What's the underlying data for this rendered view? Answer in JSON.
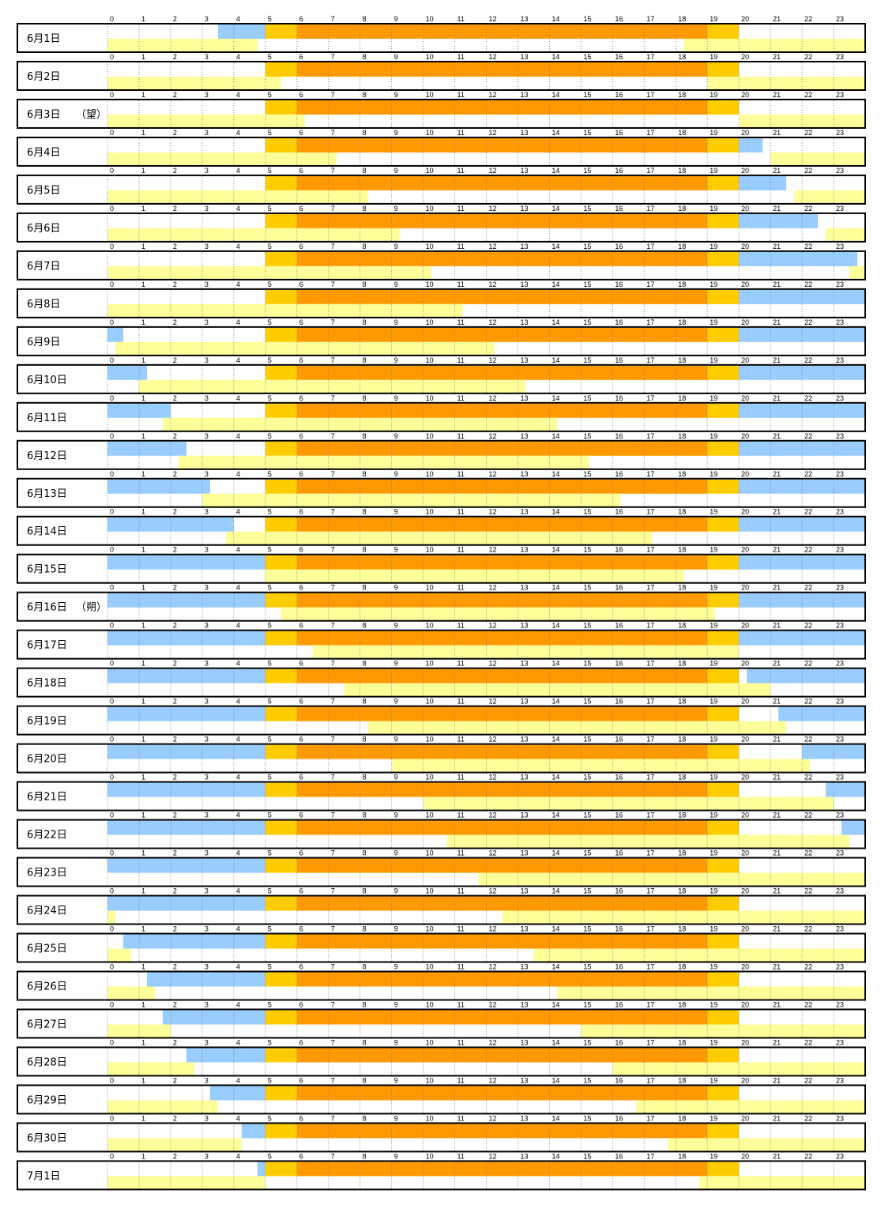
{
  "chart_data": {
    "type": "bar",
    "hours": [
      "0",
      "1",
      "2",
      "3",
      "4",
      "5",
      "6",
      "7",
      "8",
      "9",
      "10",
      "11",
      "12",
      "13",
      "14",
      "15",
      "16",
      "17",
      "18",
      "19",
      "20",
      "21",
      "22",
      "23"
    ],
    "colors": {
      "night_blue": "#99ccff",
      "twilight_gold": "#ffcc00",
      "daylight_orange": "#ff9900",
      "band_yellow": "#ffff99",
      "border": "#000000",
      "grid_dotted": "#888888"
    },
    "days": [
      {
        "label": "6月1日",
        "note": "",
        "night_start": 3.5,
        "evening_end": 20.0,
        "night_resume": null,
        "band": [
          [
            0,
            4.75
          ],
          [
            18.25,
            24
          ]
        ]
      },
      {
        "label": "6月2日",
        "note": "",
        "night_start": null,
        "evening_end": 20.0,
        "night_resume": null,
        "band": [
          [
            0,
            5.5
          ],
          [
            19.0,
            24
          ]
        ]
      },
      {
        "label": "6月3日",
        "note": "（望）",
        "night_start": null,
        "evening_end": 20.0,
        "night_resume": null,
        "band": [
          [
            0,
            6.25
          ],
          [
            20.0,
            24
          ]
        ]
      },
      {
        "label": "6月4日",
        "note": "",
        "night_start": null,
        "evening_end": 20.0,
        "night_resume": 20.75,
        "band": [
          [
            0,
            7.25
          ],
          [
            21.0,
            24
          ]
        ]
      },
      {
        "label": "6月5日",
        "note": "",
        "night_start": null,
        "evening_end": 20.0,
        "night_resume": 21.5,
        "band": [
          [
            0,
            8.25
          ],
          [
            21.75,
            24
          ]
        ]
      },
      {
        "label": "6月6日",
        "note": "",
        "night_start": null,
        "evening_end": 20.0,
        "night_resume": 22.5,
        "band": [
          [
            0,
            9.25
          ],
          [
            22.75,
            24
          ]
        ]
      },
      {
        "label": "6月7日",
        "note": "",
        "night_start": null,
        "evening_end": 20.0,
        "night_resume": 23.75,
        "band": [
          [
            0,
            10.25
          ],
          [
            23.5,
            24
          ]
        ]
      },
      {
        "label": "6月8日",
        "note": "",
        "night_start": null,
        "evening_end": 20.0,
        "night_resume": 24.0,
        "band": [
          [
            0,
            11.25
          ]
        ]
      },
      {
        "label": "6月9日",
        "note": "",
        "night_start": 0.5,
        "evening_end": 20.0,
        "night_resume": 24.0,
        "band": [
          [
            0.25,
            12.25
          ]
        ]
      },
      {
        "label": "6月10日",
        "note": "",
        "night_start": 1.25,
        "evening_end": 20.0,
        "night_resume": 24.0,
        "band": [
          [
            1.0,
            13.25
          ]
        ]
      },
      {
        "label": "6月11日",
        "note": "",
        "night_start": 2.0,
        "evening_end": 20.0,
        "night_resume": 24.0,
        "band": [
          [
            1.75,
            14.25
          ]
        ]
      },
      {
        "label": "6月12日",
        "note": "",
        "night_start": 2.5,
        "evening_end": 20.0,
        "night_resume": 24.0,
        "band": [
          [
            2.25,
            15.25
          ]
        ]
      },
      {
        "label": "6月13日",
        "note": "",
        "night_start": 3.25,
        "evening_end": 20.0,
        "night_resume": 24.0,
        "band": [
          [
            3.0,
            16.25
          ]
        ]
      },
      {
        "label": "6月14日",
        "note": "",
        "night_start": 4.0,
        "evening_end": 20.0,
        "night_resume": 24.0,
        "band": [
          [
            3.75,
            17.25
          ]
        ]
      },
      {
        "label": "6月15日",
        "note": "",
        "night_start": 5.0,
        "evening_end": 20.0,
        "night_resume": 24.0,
        "band": [
          [
            5.0,
            18.25
          ]
        ]
      },
      {
        "label": "6月16日",
        "note": "（朔）",
        "night_start": 5.0,
        "evening_end": 20.0,
        "night_resume": 24.0,
        "band": [
          [
            5.5,
            19.25
          ]
        ]
      },
      {
        "label": "6月17日",
        "note": "",
        "night_start": 5.0,
        "evening_end": 20.0,
        "night_resume": 24.0,
        "band": [
          [
            6.5,
            20.0
          ]
        ]
      },
      {
        "label": "6月18日",
        "note": "",
        "night_start": 5.0,
        "evening_end": 20.0,
        "night_resume": 24.0,
        "band": [
          [
            7.5,
            21.0
          ]
        ]
      },
      {
        "label": "6月19日",
        "note": "",
        "night_start": 5.0,
        "evening_end": 20.0,
        "night_resume": 24.0,
        "band": [
          [
            8.25,
            21.5
          ]
        ]
      },
      {
        "label": "6月20日",
        "note": "",
        "night_start": 5.0,
        "evening_end": 20.0,
        "night_resume": 24.0,
        "band": [
          [
            9.0,
            22.25
          ]
        ]
      },
      {
        "label": "6月21日",
        "note": "",
        "night_start": 5.0,
        "evening_end": 20.0,
        "night_resume": 24.0,
        "band": [
          [
            10.0,
            23.0
          ]
        ]
      },
      {
        "label": "6月22日",
        "note": "",
        "night_start": 5.0,
        "evening_end": 20.0,
        "night_resume": 24.0,
        "band": [
          [
            10.75,
            23.5
          ]
        ]
      },
      {
        "label": "6月23日",
        "note": "",
        "night_start": 5.0,
        "evening_end": 20.0,
        "night_resume": null,
        "band": [
          [
            11.75,
            24
          ]
        ]
      },
      {
        "label": "6月24日",
        "note": "",
        "night_start": 5.0,
        "evening_end": 20.0,
        "night_resume": null,
        "band": [
          [
            0,
            0.25
          ],
          [
            12.5,
            24
          ]
        ]
      },
      {
        "label": "6月25日",
        "note": "",
        "night_start": 5.0,
        "evening_end": 20.0,
        "night_resume": null,
        "band": [
          [
            0,
            0.75
          ],
          [
            13.5,
            24
          ]
        ]
      },
      {
        "label": "6月26日",
        "note": "",
        "night_start": 5.0,
        "evening_end": 20.0,
        "night_resume": null,
        "band": [
          [
            0,
            1.5
          ],
          [
            14.25,
            24
          ]
        ]
      },
      {
        "label": "6月27日",
        "note": "",
        "night_start": 5.0,
        "evening_end": 20.0,
        "night_resume": null,
        "band": [
          [
            0,
            2.0
          ],
          [
            15.0,
            24
          ]
        ]
      },
      {
        "label": "6月28日",
        "note": "",
        "night_start": 5.0,
        "evening_end": 20.0,
        "night_resume": null,
        "band": [
          [
            0,
            2.75
          ],
          [
            16.0,
            24
          ]
        ]
      },
      {
        "label": "6月29日",
        "note": "",
        "night_start": 5.0,
        "evening_end": 20.0,
        "night_resume": null,
        "band": [
          [
            0,
            3.5
          ],
          [
            16.75,
            24
          ]
        ]
      },
      {
        "label": "6月30日",
        "note": "",
        "night_start": 5.0,
        "evening_end": 20.0,
        "night_resume": null,
        "band": [
          [
            0,
            4.25
          ],
          [
            17.75,
            24
          ]
        ]
      },
      {
        "label": "7月1日",
        "note": "",
        "night_start": 4.75,
        "evening_end": 20.0,
        "night_resume": null,
        "band": [
          [
            0,
            5.0
          ],
          [
            18.75,
            24
          ]
        ]
      }
    ],
    "night_before": [
      {
        "from": 3.5,
        "to": 5.0
      },
      null,
      null,
      null,
      null,
      null,
      null,
      null,
      {
        "from": 0,
        "to": 0.5
      },
      {
        "from": 0,
        "to": 1.25
      },
      {
        "from": 0,
        "to": 2.0
      },
      {
        "from": 0,
        "to": 2.5
      },
      {
        "from": 0,
        "to": 3.25
      },
      {
        "from": 0,
        "to": 4.0
      },
      {
        "from": 0,
        "to": 5.0
      },
      {
        "from": 0,
        "to": 5.0
      },
      {
        "from": 0,
        "to": 5.0
      },
      {
        "from": 0,
        "to": 5.0
      },
      {
        "from": 0,
        "to": 5.0
      },
      {
        "from": 0,
        "to": 5.0
      },
      {
        "from": 0,
        "to": 5.0
      },
      {
        "from": 0,
        "to": 5.0
      },
      {
        "from": 0,
        "to": 5.0
      },
      {
        "from": 0,
        "to": 5.0
      },
      {
        "from": 0.5,
        "to": 5.0
      },
      {
        "from": 1.25,
        "to": 5.0
      },
      {
        "from": 1.75,
        "to": 5.0
      },
      {
        "from": 2.5,
        "to": 5.0
      },
      {
        "from": 3.25,
        "to": 5.0
      },
      {
        "from": 4.25,
        "to": 5.0
      },
      {
        "from": 4.75,
        "to": 5.0
      }
    ],
    "night_after": [
      null,
      null,
      null,
      {
        "from": 20.0,
        "to": 20.75
      },
      {
        "from": 20.0,
        "to": 21.5
      },
      {
        "from": 20.0,
        "to": 22.5
      },
      {
        "from": 20.0,
        "to": 23.75
      },
      {
        "from": 20.0,
        "to": 24.0
      },
      {
        "from": 20.0,
        "to": 24.0
      },
      {
        "from": 20.0,
        "to": 24.0
      },
      {
        "from": 20.0,
        "to": 24.0
      },
      {
        "from": 20.0,
        "to": 24.0
      },
      {
        "from": 20.0,
        "to": 24.0
      },
      {
        "from": 20.0,
        "to": 24.0
      },
      {
        "from": 20.0,
        "to": 24.0
      },
      {
        "from": 20.0,
        "to": 24.0
      },
      {
        "from": 20.0,
        "to": 24.0
      },
      {
        "from": 20.25,
        "to": 24.0
      },
      {
        "from": 21.25,
        "to": 24.0
      },
      {
        "from": 22.0,
        "to": 24.0
      },
      {
        "from": 22.75,
        "to": 24.0
      },
      {
        "from": 23.25,
        "to": 24.0
      },
      null,
      null,
      null,
      null,
      null,
      null,
      null,
      null,
      null
    ]
  }
}
